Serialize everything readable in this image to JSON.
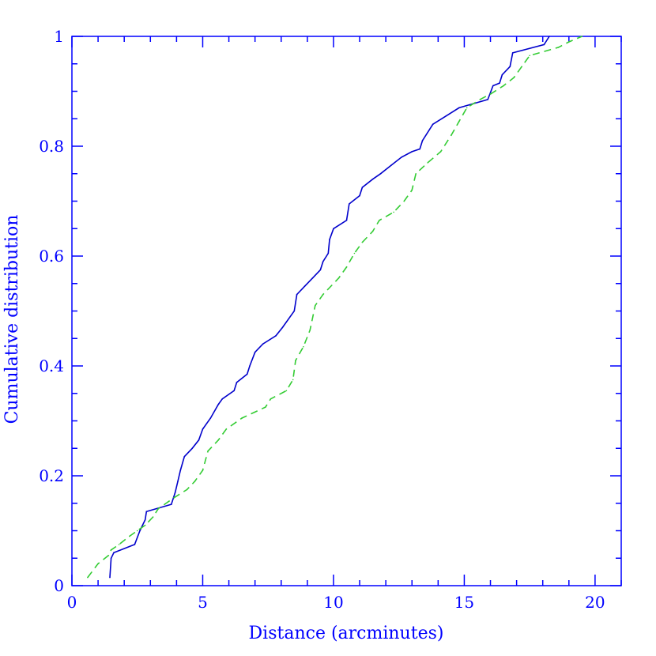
{
  "chart_data": {
    "type": "line",
    "title": "",
    "xlabel": "Distance (arcminutes)",
    "ylabel": "Cumulative distribution",
    "xlim": [
      0,
      21
    ],
    "ylim": [
      0,
      1.0
    ],
    "grid": false,
    "legend": "none",
    "x_ticks": [
      {
        "value": 0,
        "label": "0"
      },
      {
        "value": 5,
        "label": "5"
      },
      {
        "value": 10,
        "label": "10"
      },
      {
        "value": 15,
        "label": "15"
      },
      {
        "value": 20,
        "label": "20"
      }
    ],
    "y_ticks": [
      {
        "value": 0,
        "label": "0"
      },
      {
        "value": 0.2,
        "label": "0.2"
      },
      {
        "value": 0.4,
        "label": "0.4"
      },
      {
        "value": 0.6,
        "label": "0.6"
      },
      {
        "value": 0.8,
        "label": "0.8"
      },
      {
        "value": 1.0,
        "label": "1"
      }
    ],
    "series": [
      {
        "color": "#0000cc",
        "dash": "solid",
        "points": [
          [
            1.45,
            0.015
          ],
          [
            1.5,
            0.05
          ],
          [
            1.6,
            0.06
          ],
          [
            2.4,
            0.075
          ],
          [
            2.6,
            0.1
          ],
          [
            2.8,
            0.12
          ],
          [
            2.85,
            0.135
          ],
          [
            3.8,
            0.148
          ],
          [
            3.95,
            0.17
          ],
          [
            4.05,
            0.19
          ],
          [
            4.15,
            0.21
          ],
          [
            4.3,
            0.235
          ],
          [
            4.6,
            0.25
          ],
          [
            4.85,
            0.265
          ],
          [
            5.0,
            0.285
          ],
          [
            5.3,
            0.305
          ],
          [
            5.6,
            0.33
          ],
          [
            5.75,
            0.34
          ],
          [
            6.2,
            0.355
          ],
          [
            6.3,
            0.37
          ],
          [
            6.7,
            0.385
          ],
          [
            6.8,
            0.4
          ],
          [
            7.0,
            0.425
          ],
          [
            7.3,
            0.44
          ],
          [
            7.8,
            0.455
          ],
          [
            8.05,
            0.47
          ],
          [
            8.5,
            0.5
          ],
          [
            8.6,
            0.53
          ],
          [
            8.9,
            0.545
          ],
          [
            9.2,
            0.56
          ],
          [
            9.5,
            0.575
          ],
          [
            9.6,
            0.59
          ],
          [
            9.8,
            0.605
          ],
          [
            9.85,
            0.63
          ],
          [
            10.0,
            0.65
          ],
          [
            10.5,
            0.665
          ],
          [
            10.6,
            0.695
          ],
          [
            11.0,
            0.71
          ],
          [
            11.1,
            0.725
          ],
          [
            11.5,
            0.74
          ],
          [
            11.8,
            0.75
          ],
          [
            12.2,
            0.765
          ],
          [
            12.6,
            0.78
          ],
          [
            13.0,
            0.79
          ],
          [
            13.3,
            0.795
          ],
          [
            13.4,
            0.81
          ],
          [
            13.8,
            0.84
          ],
          [
            14.3,
            0.855
          ],
          [
            14.8,
            0.87
          ],
          [
            15.9,
            0.885
          ],
          [
            16.1,
            0.91
          ],
          [
            16.35,
            0.915
          ],
          [
            16.45,
            0.93
          ],
          [
            16.75,
            0.945
          ],
          [
            16.85,
            0.97
          ],
          [
            18.05,
            0.985
          ],
          [
            18.25,
            1.0
          ]
        ]
      },
      {
        "color": "#33cc33",
        "dash": "dashed",
        "points": [
          [
            0.6,
            0.015
          ],
          [
            1.0,
            0.04
          ],
          [
            1.4,
            0.055
          ],
          [
            1.5,
            0.065
          ],
          [
            1.8,
            0.075
          ],
          [
            2.2,
            0.09
          ],
          [
            2.5,
            0.1
          ],
          [
            2.8,
            0.11
          ],
          [
            3.1,
            0.125
          ],
          [
            3.3,
            0.14
          ],
          [
            3.9,
            0.16
          ],
          [
            4.4,
            0.175
          ],
          [
            4.7,
            0.19
          ],
          [
            5.0,
            0.21
          ],
          [
            5.2,
            0.245
          ],
          [
            5.6,
            0.265
          ],
          [
            5.9,
            0.285
          ],
          [
            6.5,
            0.305
          ],
          [
            7.4,
            0.325
          ],
          [
            7.6,
            0.34
          ],
          [
            8.2,
            0.355
          ],
          [
            8.45,
            0.375
          ],
          [
            8.55,
            0.41
          ],
          [
            8.85,
            0.435
          ],
          [
            9.1,
            0.465
          ],
          [
            9.3,
            0.51
          ],
          [
            9.6,
            0.53
          ],
          [
            10.2,
            0.56
          ],
          [
            10.5,
            0.58
          ],
          [
            10.8,
            0.605
          ],
          [
            11.1,
            0.625
          ],
          [
            11.5,
            0.645
          ],
          [
            11.75,
            0.665
          ],
          [
            12.3,
            0.68
          ],
          [
            12.7,
            0.7
          ],
          [
            13.0,
            0.72
          ],
          [
            13.15,
            0.75
          ],
          [
            13.6,
            0.77
          ],
          [
            14.1,
            0.79
          ],
          [
            14.5,
            0.82
          ],
          [
            14.8,
            0.845
          ],
          [
            15.1,
            0.87
          ],
          [
            15.6,
            0.885
          ],
          [
            16.0,
            0.895
          ],
          [
            16.5,
            0.91
          ],
          [
            16.9,
            0.925
          ],
          [
            17.2,
            0.945
          ],
          [
            17.5,
            0.965
          ],
          [
            18.6,
            0.98
          ],
          [
            19.0,
            0.99
          ],
          [
            19.5,
            1.0
          ]
        ]
      }
    ]
  }
}
